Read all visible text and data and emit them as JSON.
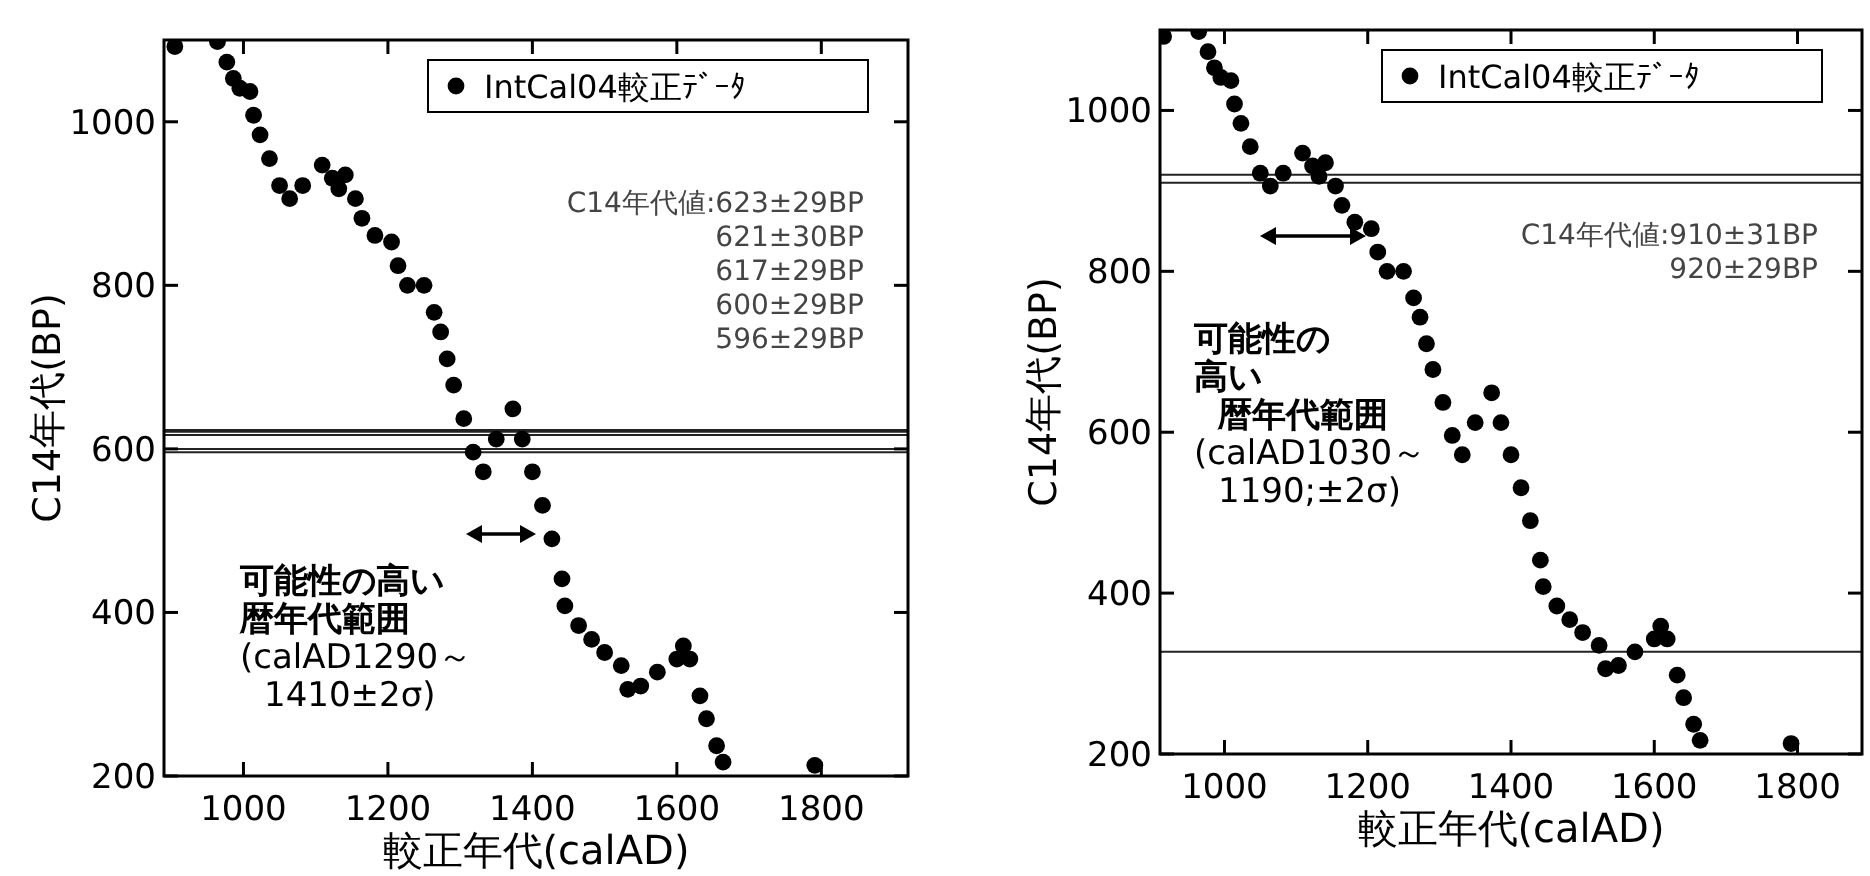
{
  "chart_data": [
    {
      "type": "scatter",
      "xlabel": "較正年代(calAD)",
      "ylabel": "C14年代(BP)",
      "xlim": [
        890,
        1920
      ],
      "ylim": [
        200,
        1100
      ],
      "xticks": [
        1000,
        1200,
        1400,
        1600,
        1800
      ],
      "yticks": [
        200,
        400,
        600,
        800,
        1000
      ],
      "legend": "top right",
      "marker": "circle",
      "grid": false,
      "series": [
        {
          "name": "IntCal04較正ﾃﾞｰﾀ",
          "color": "#000000",
          "x": [
            905,
            964,
            977,
            986,
            995,
            1009,
            1014,
            1023,
            1036,
            1050,
            1064,
            1082,
            1109,
            1123,
            1132,
            1141,
            1155,
            1164,
            1182,
            1205,
            1214,
            1227,
            1250,
            1264,
            1273,
            1282,
            1291,
            1305,
            1318,
            1332,
            1350,
            1373,
            1386,
            1400,
            1414,
            1427,
            1441,
            1445,
            1464,
            1482,
            1500,
            1523,
            1532,
            1550,
            1573,
            1600,
            1609,
            1618,
            1632,
            1641,
            1655,
            1664,
            1791
          ],
          "values": [
            1092,
            1098,
            1073,
            1053,
            1041,
            1037,
            1008,
            984,
            955,
            922,
            906,
            922,
            947,
            931,
            918,
            935,
            906,
            882,
            861,
            853,
            824,
            800,
            800,
            767,
            743,
            710,
            678,
            637,
            596,
            572,
            612,
            649,
            612,
            572,
            531,
            490,
            441,
            408,
            384,
            367,
            351,
            335,
            306,
            310,
            327,
            343,
            359,
            343,
            298,
            270,
            237,
            217,
            213
          ]
        }
      ],
      "ref_lines": [
        {
          "axis": "y",
          "value": 623
        },
        {
          "axis": "y",
          "value": 621
        },
        {
          "axis": "y",
          "value": 617
        },
        {
          "axis": "y",
          "value": 600
        },
        {
          "axis": "y",
          "value": 596
        }
      ],
      "annotations": [
        "C14年代値:623±29BP\n621±30BP\n617±29BP\n600±29BP\n596±29BP",
        "可能性の高い",
        "暦年代範囲",
        "(calAD1290～",
        "1410±2σ)"
      ]
    },
    {
      "type": "scatter",
      "xlabel": "較正年代(calAD)",
      "ylabel": "C14年代(BP)",
      "xlim": [
        910,
        1890
      ],
      "ylim": [
        200,
        1100
      ],
      "xticks": [
        1000,
        1200,
        1400,
        1600,
        1800
      ],
      "yticks": [
        200,
        400,
        600,
        800,
        1000
      ],
      "legend": "top right",
      "marker": "circle",
      "grid": false,
      "series": [
        {
          "name": "IntCal04較正ﾃﾞｰﾀ",
          "color": "#000000",
          "x": [
            915,
            964,
            977,
            986,
            995,
            1009,
            1014,
            1023,
            1036,
            1050,
            1064,
            1082,
            1109,
            1123,
            1132,
            1141,
            1155,
            1164,
            1182,
            1205,
            1214,
            1227,
            1250,
            1264,
            1273,
            1282,
            1291,
            1305,
            1318,
            1332,
            1350,
            1373,
            1386,
            1400,
            1414,
            1427,
            1441,
            1445,
            1464,
            1482,
            1500,
            1523,
            1532,
            1550,
            1573,
            1600,
            1609,
            1618,
            1632,
            1641,
            1655,
            1664,
            1791
          ],
          "values": [
            1092,
            1098,
            1073,
            1053,
            1041,
            1037,
            1008,
            984,
            955,
            922,
            906,
            922,
            947,
            931,
            918,
            935,
            906,
            882,
            861,
            853,
            824,
            800,
            800,
            767,
            743,
            710,
            678,
            637,
            596,
            572,
            612,
            649,
            612,
            572,
            531,
            490,
            441,
            408,
            384,
            367,
            351,
            335,
            306,
            310,
            327,
            343,
            359,
            343,
            298,
            270,
            237,
            217,
            213
          ]
        }
      ],
      "ref_lines": [
        {
          "axis": "y",
          "value": 920
        },
        {
          "axis": "y",
          "value": 910
        },
        {
          "axis": "y",
          "value": 327
        }
      ],
      "annotations": [
        "C14年代値:910±31BP\n920±29BP",
        "可能性の",
        "高い",
        "暦年代範囲",
        "(calAD1030～",
        "1190;±2σ)"
      ]
    }
  ]
}
